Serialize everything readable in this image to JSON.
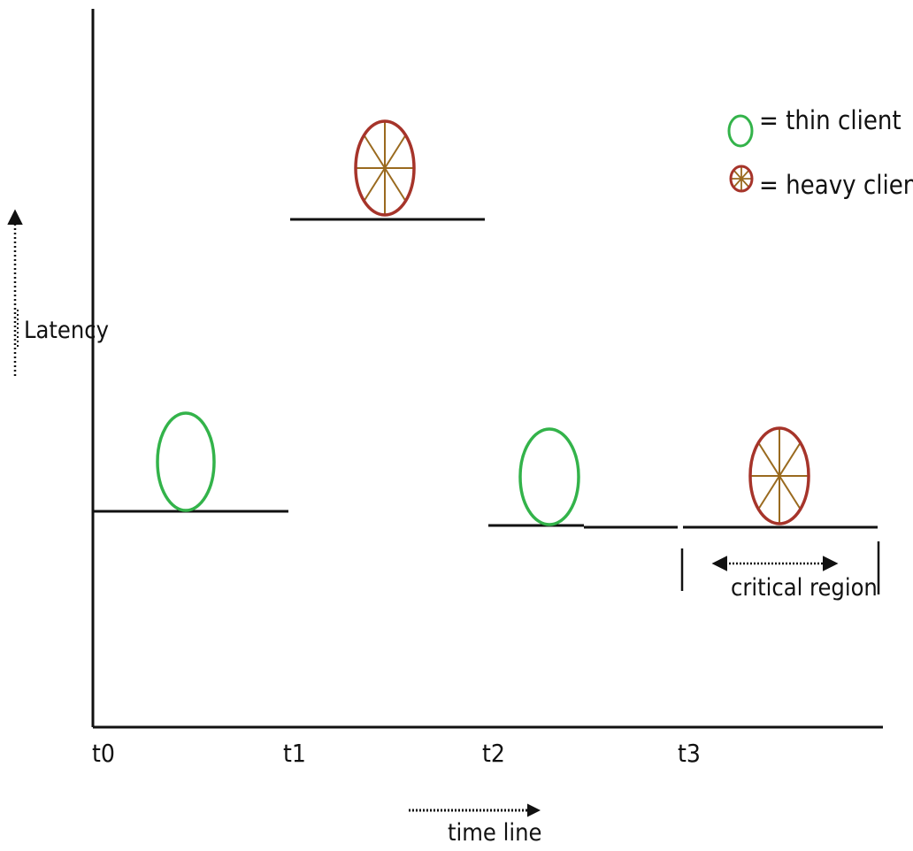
{
  "diagram": {
    "y_axis_label": "Latency",
    "x_axis_label": "time line",
    "ticks": [
      "t0",
      "t1",
      "t2",
      "t3"
    ],
    "legend": {
      "thin": {
        "text": "= thin client",
        "symbol": "thin-client-symbol"
      },
      "heavy": {
        "text": "= heavy client",
        "symbol": "heavy-client-symbol"
      }
    },
    "critical_region_label": "critical region",
    "colors": {
      "thin_client": "#33b34a",
      "heavy_client_outline": "#a6342a",
      "heavy_client_spokes": "#9a6a1f",
      "lines": "#111111"
    }
  }
}
